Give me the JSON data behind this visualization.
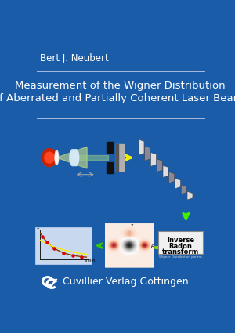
{
  "bg_color": "#1a5ca8",
  "title_line1": "Measurement of the Wigner Distribution",
  "title_line2": "of Aberrated and Partially Coherent Laser Beams",
  "author": "Bert J. Neubert",
  "publisher": "Cuvillier Verlag Göttingen",
  "separator_color": "#aabbdd",
  "text_color": "#ffffff",
  "author_fontsize": 8.5,
  "title_fontsize": 9.5,
  "publisher_fontsize": 9.0
}
